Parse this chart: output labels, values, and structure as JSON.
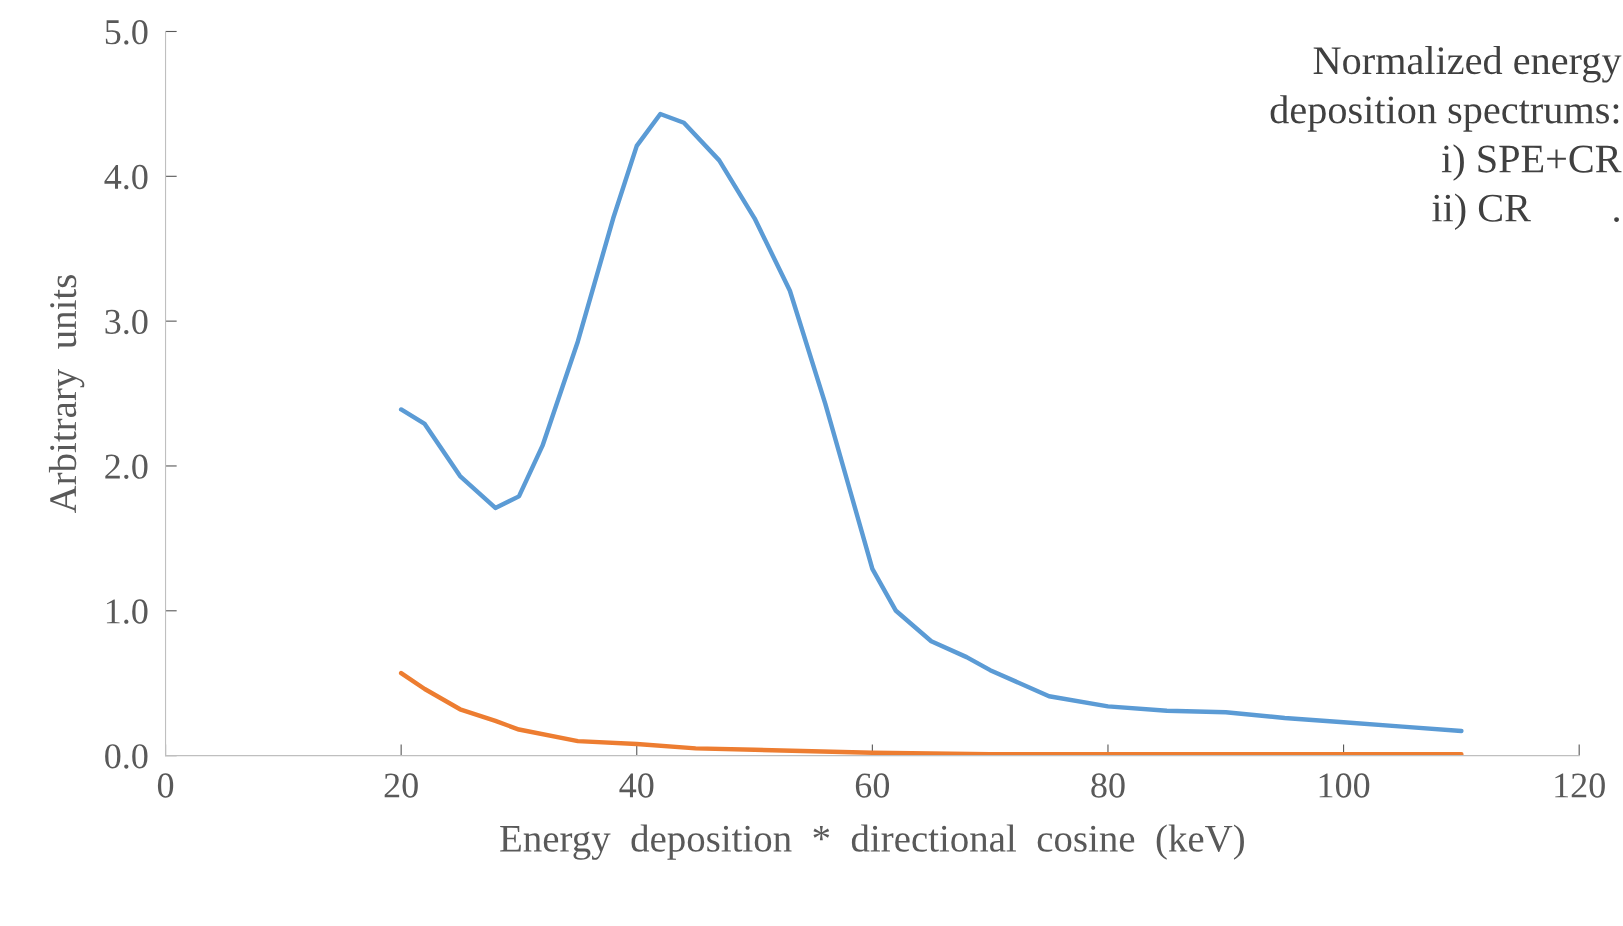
{
  "chart_data": {
    "type": "line",
    "xlabel": "Energy  deposition  *  directional  cosine  (keV)",
    "ylabel": "Arbitrary  units",
    "annotations": [
      "Normalized energy\ndeposition spectrums:\ni) SPE+CR\nii) CR        ."
    ],
    "xlim": [
      0,
      120
    ],
    "xticks": [
      0,
      20,
      40,
      60,
      80,
      100,
      120
    ],
    "ylim": [
      0,
      5
    ],
    "yticks": [
      {
        "value": 0,
        "label": "0.0"
      },
      {
        "value": 1,
        "label": "1.0"
      },
      {
        "value": 2,
        "label": "2.0"
      },
      {
        "value": 3,
        "label": "3.0"
      },
      {
        "value": 4,
        "label": "4.0"
      },
      {
        "value": 5,
        "label": "5.0"
      }
    ],
    "grid": false,
    "marker": "none",
    "line_style": "solid",
    "series": [
      {
        "color": "#5b9bd5",
        "x": [
          20,
          22,
          25,
          28,
          30,
          32,
          35,
          38,
          40,
          42,
          44,
          47,
          50,
          53,
          56,
          58,
          60,
          62,
          65,
          68,
          70,
          75,
          80,
          85,
          90,
          95,
          100,
          105,
          110
        ],
        "values": [
          2.39,
          2.29,
          1.93,
          1.71,
          1.79,
          2.14,
          2.86,
          3.71,
          4.21,
          4.43,
          4.37,
          4.11,
          3.71,
          3.21,
          2.43,
          1.86,
          1.29,
          1.0,
          0.79,
          0.68,
          0.59,
          0.41,
          0.34,
          0.31,
          0.3,
          0.26,
          0.23,
          0.2,
          0.17
        ]
      },
      {
        "color": "#ed7d31",
        "x": [
          20,
          22,
          25,
          28,
          30,
          35,
          40,
          45,
          50,
          60,
          70,
          80,
          90,
          110
        ],
        "values": [
          0.57,
          0.46,
          0.32,
          0.24,
          0.18,
          0.1,
          0.08,
          0.05,
          0.04,
          0.02,
          0.01,
          0.01,
          0.01,
          0.01
        ]
      }
    ]
  }
}
